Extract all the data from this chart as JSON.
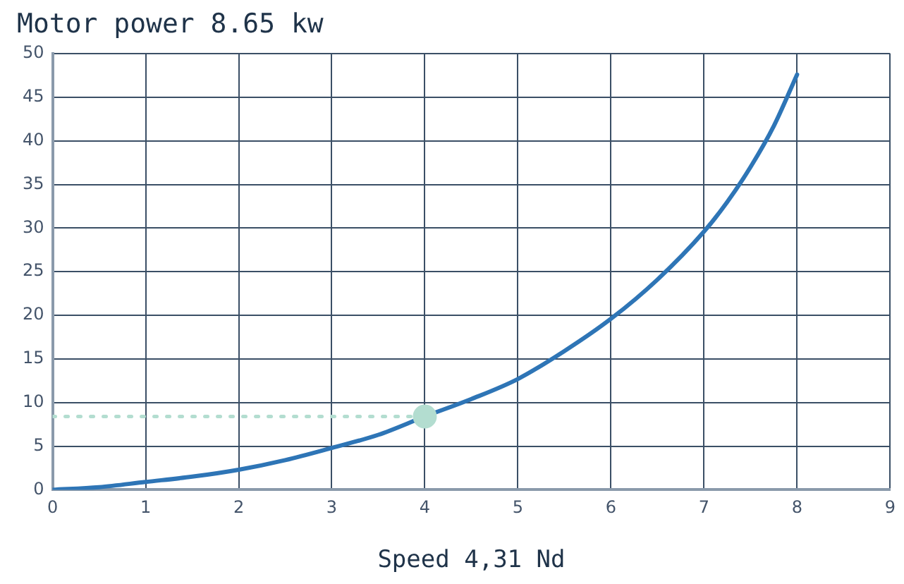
{
  "chart_data": {
    "type": "line",
    "title": "Motor power 8.65 kw",
    "xlabel": "Speed 4,31 Nd",
    "xlim": [
      0,
      9
    ],
    "xticks": [
      0,
      1,
      2,
      3,
      4,
      5,
      6,
      7,
      8,
      9
    ],
    "ylim": [
      0,
      50
    ],
    "yticks": [
      0,
      5,
      10,
      15,
      20,
      25,
      30,
      35,
      40,
      45,
      50
    ],
    "grid": true,
    "legend": false,
    "series": [
      {
        "color": "#2e75b6",
        "marker": "none",
        "line_style": "solid",
        "x": [
          0,
          0.5,
          1,
          1.5,
          2,
          2.5,
          3,
          3.5,
          4,
          4.5,
          5,
          5.5,
          6,
          6.5,
          7,
          7.25,
          7.5,
          7.75,
          8
        ],
        "values": [
          0,
          0.3,
          0.9,
          1.5,
          2.3,
          3.4,
          4.8,
          6.3,
          8.4,
          10.4,
          12.7,
          15.9,
          19.6,
          24.1,
          29.6,
          33,
          37,
          41.7,
          47.6
        ]
      },
      {
        "type": "line",
        "color": "#b3ddd0",
        "marker": "none",
        "line_style": "dotted",
        "x": [
          0,
          4
        ],
        "values": [
          8.4,
          8.4
        ]
      },
      {
        "type": "scatter",
        "color": "#b3ddd0",
        "marker": "circle",
        "x": [
          4
        ],
        "values": [
          8.4
        ]
      }
    ]
  }
}
